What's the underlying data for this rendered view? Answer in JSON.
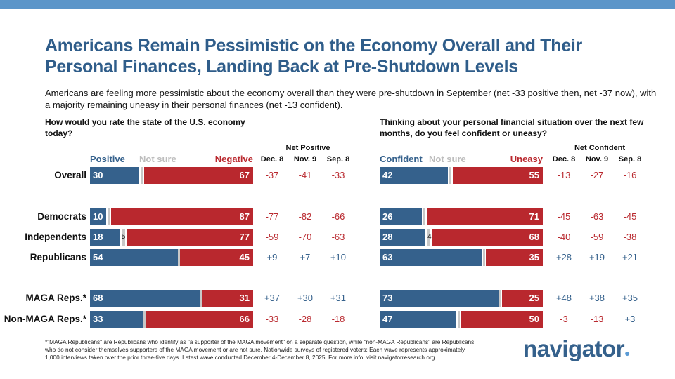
{
  "title": "Americans Remain Pessimistic on the Economy Overall and Their Personal Finances, Landing Back at Pre-Shutdown Levels",
  "subtitle": "Americans are feeling more pessimistic about the economy overall than they were pre-shutdown in September (net -33 positive then, net -37 now), with a majority remaining uneasy in their personal finances (net -13 confident).",
  "footnote": "*\"MAGA Republicans\" are Republicans who identify as \"a supporter of the MAGA movement\" on a separate question, while \"non-MAGA Republicans\" are Republicans who do not consider themselves supporters of the MAGA movement or are not sure. Nationwide surveys of registered voters; Each wave represents approximately 1,000 interviews taken over the prior three-five days. Latest wave conducted December 4-December 8, 2025. For more info, visit navigatorresearch.org.",
  "logo": "navigator",
  "colors": {
    "positive": "#35618c",
    "negative": "#b9282e",
    "not_sure": "#c8c8c8",
    "title": "#2f5d8a"
  },
  "row_labels": [
    "Overall",
    "Democrats",
    "Independents",
    "Republicans",
    "MAGA Reps.*",
    "Non-MAGA Reps.*"
  ],
  "chart_data": [
    {
      "type": "bar",
      "stacked": true,
      "title": "How would you rate the state of the U.S. economy today?",
      "legend": [
        "Positive",
        "Not sure",
        "Negative"
      ],
      "net_title": "Net Positive",
      "net_columns": [
        "Dec. 8",
        "Nov. 9",
        "Sep. 8"
      ],
      "categories": [
        "Overall",
        "Democrats",
        "Independents",
        "Republicans",
        "MAGA Reps.*",
        "Non-MAGA Reps.*"
      ],
      "series": [
        {
          "name": "Positive",
          "values": [
            30,
            10,
            18,
            54,
            68,
            33
          ]
        },
        {
          "name": "Not sure",
          "values": [
            3,
            3,
            5,
            1,
            1,
            1
          ],
          "labels": [
            "",
            "",
            "5",
            "",
            "",
            ""
          ]
        },
        {
          "name": "Negative",
          "values": [
            67,
            87,
            77,
            45,
            31,
            66
          ]
        }
      ],
      "net": [
        [
          "-37",
          "-41",
          "-33"
        ],
        [
          "-77",
          "-82",
          "-66"
        ],
        [
          "-59",
          "-70",
          "-63"
        ],
        [
          "+9",
          "+7",
          "+10"
        ],
        [
          "+37",
          "+30",
          "+31"
        ],
        [
          "-33",
          "-28",
          "-18"
        ]
      ]
    },
    {
      "type": "bar",
      "stacked": true,
      "title": "Thinking about your personal financial situation over the next few months, do you feel confident or uneasy?",
      "legend": [
        "Confident",
        "Not sure",
        "Uneasy"
      ],
      "net_title": "Net Confident",
      "net_columns": [
        "Dec. 8",
        "Nov. 9",
        "Sep. 8"
      ],
      "categories": [
        "Overall",
        "Democrats",
        "Independents",
        "Republicans",
        "MAGA Reps.*",
        "Non-MAGA Reps.*"
      ],
      "series": [
        {
          "name": "Confident",
          "values": [
            42,
            26,
            28,
            63,
            73,
            47
          ]
        },
        {
          "name": "Not sure",
          "values": [
            3,
            3,
            4,
            2,
            2,
            3
          ],
          "labels": [
            "",
            "",
            "4",
            "",
            "",
            ""
          ]
        },
        {
          "name": "Uneasy",
          "values": [
            55,
            71,
            68,
            35,
            25,
            50
          ]
        }
      ],
      "net": [
        [
          "-13",
          "-27",
          "-16"
        ],
        [
          "-45",
          "-63",
          "-45"
        ],
        [
          "-40",
          "-59",
          "-38"
        ],
        [
          "+28",
          "+19",
          "+21"
        ],
        [
          "+48",
          "+38",
          "+35"
        ],
        [
          "-3",
          "-13",
          "+3"
        ]
      ]
    }
  ]
}
